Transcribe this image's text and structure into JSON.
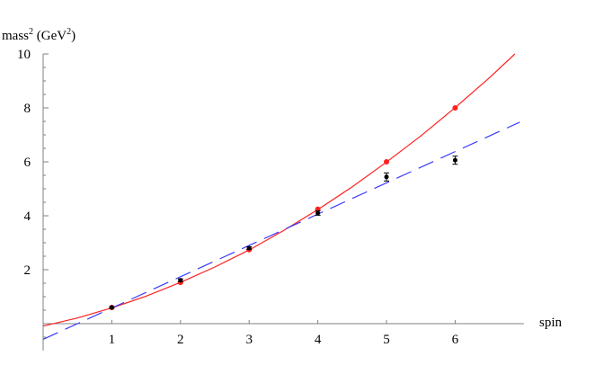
{
  "chart_data": {
    "type": "scatter",
    "ylabel_main": "mass",
    "ylabel_sup": "2",
    "ylabel_unit_pre": " (GeV",
    "ylabel_unit_sup": "2",
    "ylabel_unit_post": ")",
    "xlabel": "spin",
    "xlim": [
      0,
      7
    ],
    "ylim": [
      -1,
      10
    ],
    "xticks": [
      1,
      2,
      3,
      4,
      5,
      6
    ],
    "yticks": [
      2,
      4,
      6,
      8,
      10
    ],
    "grid": false,
    "colors": {
      "red": "#ff2020",
      "blue": "#3a3aff",
      "black": "#000000",
      "axis": "#808080"
    },
    "series": [
      {
        "style": "red-points",
        "x": [
          1,
          2,
          3,
          4,
          5,
          6
        ],
        "y": [
          0.6,
          1.53,
          2.74,
          4.24,
          6.0,
          8.0
        ]
      },
      {
        "style": "black-points-errorbars",
        "x": [
          1,
          2,
          3,
          4,
          5,
          6
        ],
        "y": [
          0.6,
          1.61,
          2.8,
          4.1,
          5.44,
          6.06
        ],
        "err": [
          0.03,
          0.05,
          0.05,
          0.08,
          0.15,
          0.15
        ]
      },
      {
        "style": "red-solid-curve",
        "x": [
          0,
          0.5,
          1,
          1.5,
          2,
          2.5,
          3,
          3.5,
          4,
          4.5,
          5,
          5.5,
          6,
          6.5,
          6.87
        ],
        "y": [
          -0.09,
          0.21,
          0.585,
          1.02,
          1.53,
          2.1,
          2.73,
          3.45,
          4.23,
          5.07,
          5.99,
          6.96,
          8.01,
          9.12,
          10.0
        ]
      },
      {
        "style": "blue-dashed-line",
        "x": [
          0,
          6.94
        ],
        "y": [
          -0.58,
          7.47
        ]
      }
    ]
  }
}
